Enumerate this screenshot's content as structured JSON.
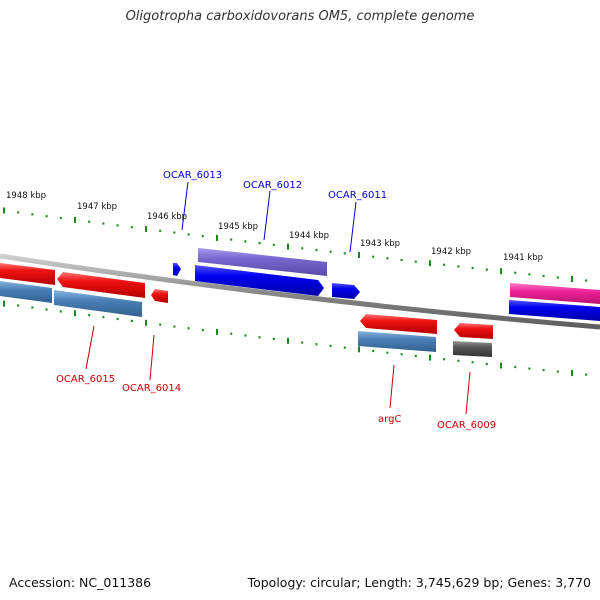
{
  "title": "Oligotropha carboxidovorans OM5, complete genome",
  "footer": {
    "accession_label": "Accession:",
    "accession": "NC_011386",
    "topology_label": "Topology:",
    "topology": "circular",
    "length_label": "Length:",
    "length": "3,745,629 bp",
    "genes_label": "Genes:",
    "genes": "3,770"
  },
  "scale_labels": [
    "1948 kbp",
    "1947 kbp",
    "1946 kbp",
    "1945 kbp",
    "1944 kbp",
    "1943 kbp",
    "1942 kbp",
    "1941 kbp"
  ],
  "gene_labels": {
    "top": [
      "OCAR_6013",
      "OCAR_6012",
      "OCAR_6011"
    ],
    "bottom": [
      "OCAR_6015",
      "OCAR_6014",
      "argC",
      "OCAR_6009"
    ]
  },
  "colors": {
    "top_label": "#0000cc",
    "bottom_label": "#cc0000",
    "scale_tick": "#1a8a1a",
    "backbone": "#8a8a8a",
    "red_gene": "#ee1111",
    "blue_gene": "#0000ee",
    "purple_gene": "#7766cc",
    "steel_gene": "#4a7fb5",
    "pink_gene": "#ee2299",
    "gray_gene": "#555555"
  }
}
